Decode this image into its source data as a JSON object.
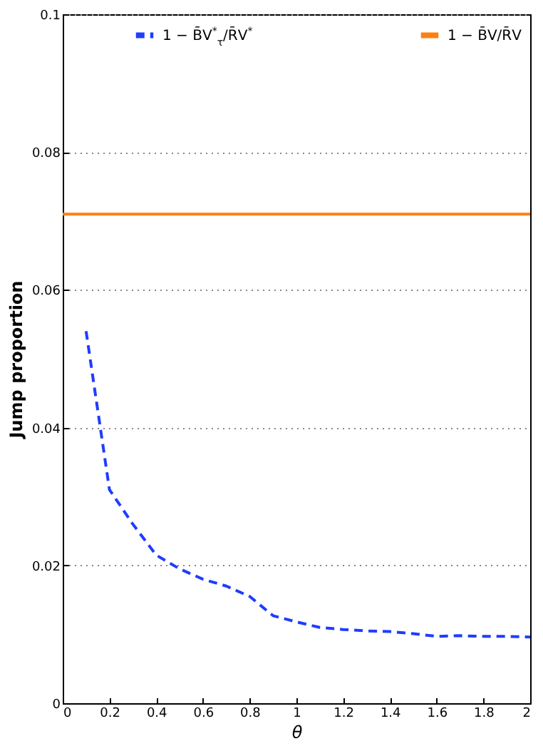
{
  "chart_data": {
    "type": "line",
    "xlabel": "θ",
    "ylabel": "Jump proportion",
    "xlim": [
      0,
      2
    ],
    "xticks": [
      0,
      0.2,
      0.4,
      0.6,
      0.8,
      1,
      1.2,
      1.4,
      1.6,
      1.8,
      2
    ],
    "ylim": [
      0,
      0.1
    ],
    "yticks": [
      0,
      0.02,
      0.04,
      0.06,
      0.08,
      0.1
    ],
    "grid": "y",
    "legend": "top right",
    "series": [
      {
        "name": "1 − B̄V$^{*}$$_{τ}$/R̄V$^{*}$",
        "color": "#1f3cff",
        "line_style": "dashed",
        "x": [
          0.1,
          0.2,
          0.3,
          0.4,
          0.5,
          0.6,
          0.7,
          0.8,
          0.9,
          1.0,
          1.1,
          1.2,
          1.3,
          1.4,
          1.5,
          1.6,
          1.7,
          1.8,
          1.9,
          2.0
        ],
        "values": [
          0.054,
          0.031,
          0.026,
          0.0215,
          0.0195,
          0.018,
          0.017,
          0.0155,
          0.0127,
          0.0118,
          0.011,
          0.0107,
          0.0105,
          0.0104,
          0.0101,
          0.0097,
          0.0098,
          0.0097,
          0.0097,
          0.0096
        ]
      },
      {
        "name": "1 − B̄V/R̄V",
        "color": "#ff7f0e",
        "line_style": "solid",
        "x": [
          0,
          2
        ],
        "values": [
          0.071,
          0.071
        ]
      }
    ]
  }
}
